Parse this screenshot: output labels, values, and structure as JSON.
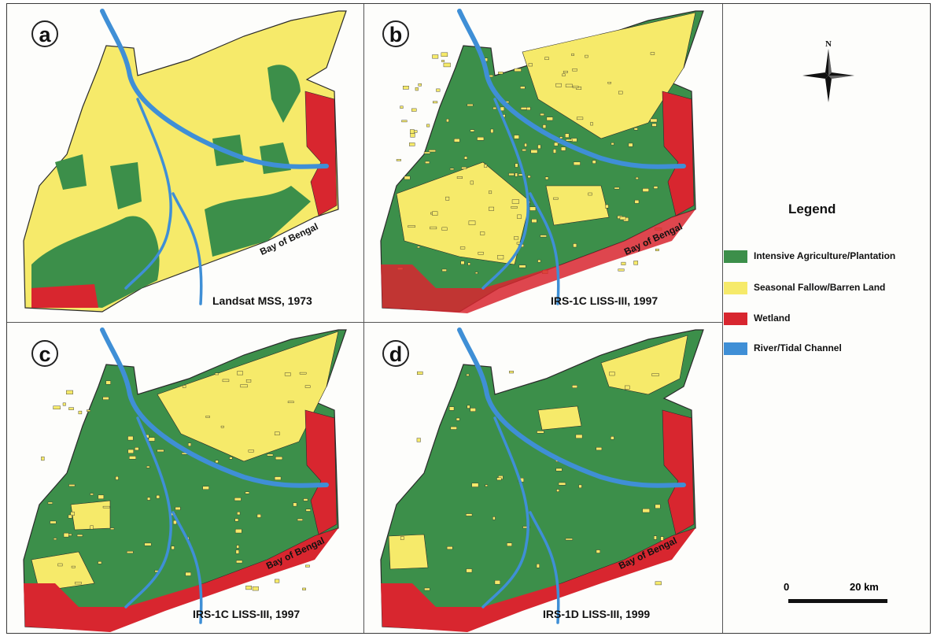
{
  "colors": {
    "agriculture": "#3c8f4a",
    "fallow": "#f6ea6a",
    "wetland": "#d8262f",
    "river": "#3f8fd6",
    "outline": "#2a2a2a"
  },
  "panels": [
    {
      "letter": "a",
      "caption": "Landsat MSS, 1973",
      "bay_label": "Bay of Bengal"
    },
    {
      "letter": "b",
      "caption": "IRS-1C LISS-III, 1997",
      "bay_label": "Bay of Bengal"
    },
    {
      "letter": "c",
      "caption": "IRS-1C LISS-III, 1997",
      "bay_label": "Bay of Bengal"
    },
    {
      "letter": "d",
      "caption": "IRS-1D LISS-III, 1999",
      "bay_label": "Bay of Bengal"
    }
  ],
  "north_label": "N",
  "legend": {
    "title": "Legend",
    "items": [
      {
        "label": "Intensive Agriculture/Plantation",
        "color": "#3c8f4a"
      },
      {
        "label": "Seasonal Fallow/Barren Land",
        "color": "#f6ea6a"
      },
      {
        "label": "Wetland",
        "color": "#d8262f"
      },
      {
        "label": "River/Tidal Channel",
        "color": "#3f8fd6"
      }
    ]
  },
  "scale_bar": {
    "start_label": "0",
    "end_label": "20 km"
  }
}
